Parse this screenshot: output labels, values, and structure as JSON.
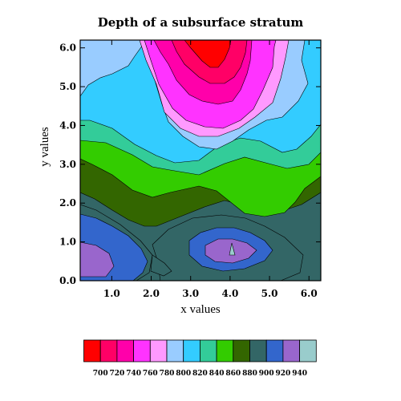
{
  "chart_data": {
    "type": "contour",
    "title": "Depth of a subsurface stratum",
    "xlabel": "x values",
    "ylabel": "y values",
    "xlim": [
      0.2,
      6.3
    ],
    "ylim": [
      0.0,
      6.2
    ],
    "x_ticks": [
      "1.0",
      "2.0",
      "3.0",
      "4.0",
      "5.0",
      "6.0"
    ],
    "y_ticks": [
      "0.0",
      "1.0",
      "2.0",
      "3.0",
      "4.0",
      "5.0",
      "6.0"
    ],
    "levels": [
      700,
      720,
      740,
      760,
      780,
      800,
      820,
      840,
      860,
      880,
      900,
      920,
      940
    ],
    "level_labels": [
      "700",
      "720",
      "740",
      "760",
      "780",
      "800",
      "820",
      "840",
      "860",
      "880",
      "900",
      "920",
      "940"
    ],
    "colors": [
      "#ff0000",
      "#ff0066",
      "#ff00aa",
      "#ff33ff",
      "#ff99ff",
      "#99ccff",
      "#33ccff",
      "#33cc99",
      "#33cc00",
      "#336600",
      "#336666",
      "#3366cc",
      "#9966cc",
      "#99cccc"
    ]
  }
}
